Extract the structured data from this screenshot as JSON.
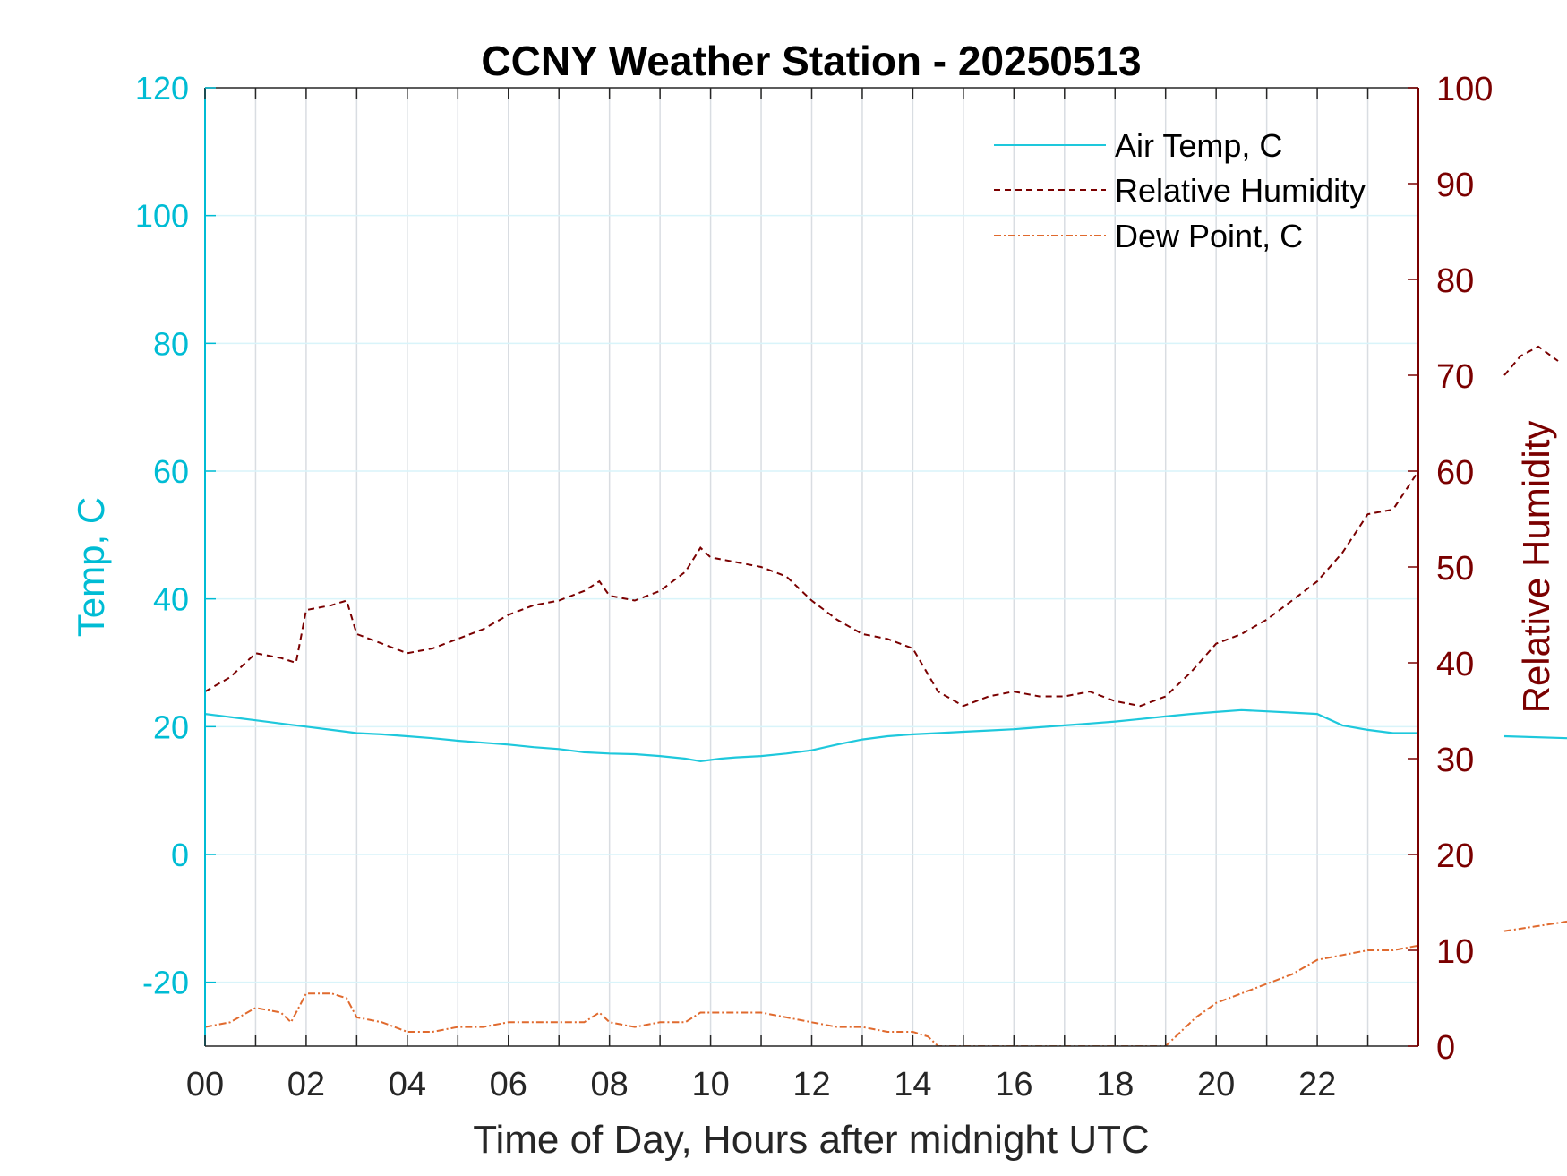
{
  "chart_data": {
    "type": "line",
    "title": "CCNY Weather Station - 20250513",
    "xlabel": "Time of Day, Hours after midnight UTC",
    "ylabel_left": "Temp, C",
    "ylabel_right": "Relative Humidity",
    "xlim": [
      0,
      24
    ],
    "ylim_left": [
      -30,
      120
    ],
    "ylim_right": [
      0,
      100
    ],
    "x_ticks": [
      0,
      1,
      2,
      3,
      4,
      5,
      6,
      7,
      8,
      9,
      10,
      11,
      12,
      13,
      14,
      15,
      16,
      17,
      18,
      19,
      20,
      21,
      22,
      23
    ],
    "x_tick_labels": [
      "00",
      "02",
      "04",
      "06",
      "08",
      "10",
      "12",
      "14",
      "16",
      "18",
      "20",
      "22"
    ],
    "x_tick_label_values": [
      0,
      2,
      4,
      6,
      8,
      10,
      12,
      14,
      16,
      18,
      20,
      22
    ],
    "y_left_ticks": [
      -20,
      0,
      20,
      40,
      60,
      80,
      100,
      120
    ],
    "y_left_tick_labels": [
      "-20",
      "0",
      "20",
      "40",
      "60",
      "80",
      "100",
      "120"
    ],
    "y_right_ticks": [
      0,
      10,
      20,
      30,
      40,
      50,
      60,
      70,
      80,
      90,
      100
    ],
    "y_right_tick_labels": [
      "0",
      "10",
      "20",
      "30",
      "40",
      "50",
      "60",
      "70",
      "80",
      "90",
      "100"
    ],
    "grid": true,
    "legend_position": "top-right",
    "colors": {
      "air_temp": "#1ec8dc",
      "humidity": "#7a0000",
      "dew_point": "#e06a2e",
      "left_axis": "#00bcd4",
      "right_axis": "#7a0000",
      "grid_vertical": "#d9dde2",
      "grid_horizontal": "#d9f4fa"
    },
    "series": [
      {
        "name": "Air Temp, C",
        "axis": "left",
        "style": "solid",
        "x": [
          0,
          0.5,
          1,
          1.5,
          2,
          2.5,
          3,
          3.5,
          4,
          4.5,
          5,
          5.5,
          6,
          6.5,
          7,
          7.5,
          8,
          8.5,
          9,
          9.5,
          9.8,
          10.2,
          10.5,
          11,
          11.5,
          12,
          12.5,
          13,
          13.5,
          14,
          14.5,
          15,
          15.5,
          16,
          16.5,
          17,
          17.5,
          18,
          18.5,
          19,
          19.5,
          20,
          20.5,
          21,
          21.5,
          22,
          22.5,
          23,
          23.5,
          24
        ],
        "values": [
          22,
          21.5,
          21,
          20.5,
          20,
          19.5,
          19,
          18.8,
          18.5,
          18.2,
          17.8,
          17.5,
          17.2,
          16.8,
          16.5,
          16.0,
          15.8,
          15.7,
          15.4,
          15.0,
          14.6,
          15.0,
          15.2,
          15.4,
          15.8,
          16.3,
          17.2,
          18.0,
          18.5,
          18.8,
          19.0,
          19.2,
          19.4,
          19.6,
          19.9,
          20.2,
          20.5,
          20.8,
          21.2,
          21.6,
          22.0,
          22.3,
          22.6,
          22.4,
          22.2,
          22.0,
          20.2,
          19.5,
          19.0,
          19.0
        ]
      },
      {
        "name": "Relative Humidity",
        "axis": "right",
        "style": "dashed",
        "x": [
          0,
          0.5,
          1,
          1.5,
          1.8,
          2,
          2.5,
          2.8,
          3,
          3.5,
          4,
          4.5,
          5,
          5.5,
          6,
          6.5,
          7,
          7.5,
          7.8,
          8,
          8.5,
          9,
          9.5,
          9.8,
          10,
          10.5,
          11,
          11.5,
          12,
          12.5,
          13,
          13.5,
          14,
          14.5,
          15,
          15.5,
          16,
          16.5,
          17,
          17.5,
          18,
          18.5,
          19,
          19.5,
          20,
          20.5,
          21,
          21.5,
          22,
          22.5,
          23,
          23.5,
          24
        ],
        "values": [
          37,
          38.5,
          41,
          40.5,
          40,
          45.5,
          46,
          46.5,
          43,
          42,
          41,
          41.5,
          42.5,
          43.5,
          45,
          46,
          46.5,
          47.5,
          48.5,
          47,
          46.5,
          47.5,
          49.5,
          52,
          51,
          50.5,
          50,
          49,
          46.5,
          44.5,
          43,
          42.5,
          41.5,
          37,
          35.5,
          36.5,
          37,
          36.5,
          36.5,
          37,
          36,
          35.5,
          36.5,
          39,
          42,
          43,
          44.5,
          46.5,
          48.5,
          51.5,
          55.5,
          56,
          60
        ]
      },
      {
        "name": "Dew Point, C",
        "axis": "right",
        "style": "dash-dot",
        "x": [
          0,
          0.5,
          1,
          1.5,
          1.7,
          2,
          2.5,
          2.8,
          3,
          3.5,
          4,
          4.5,
          5,
          5.5,
          6,
          6.5,
          7,
          7.5,
          7.8,
          8,
          8.5,
          9,
          9.5,
          9.8,
          10,
          10.5,
          11,
          11.5,
          12,
          12.5,
          13,
          13.5,
          14,
          14.3,
          14.5,
          19,
          19.3,
          19.6,
          20,
          20.5,
          21,
          21.5,
          22,
          22.5,
          23,
          23.5,
          24
        ],
        "values": [
          2,
          2.5,
          4,
          3.5,
          2.5,
          5.5,
          5.5,
          5,
          3,
          2.5,
          1.5,
          1.5,
          2,
          2,
          2.5,
          2.5,
          2.5,
          2.5,
          3.5,
          2.5,
          2,
          2.5,
          2.5,
          3.5,
          3.5,
          3.5,
          3.5,
          3,
          2.5,
          2,
          2,
          1.5,
          1.5,
          1,
          0,
          0,
          1.5,
          3,
          4.5,
          5.5,
          6.5,
          7.5,
          9,
          9.5,
          10,
          10,
          10.5
        ]
      }
    ],
    "outside_plot_fragments": {
      "humidity_values": [
        70,
        72,
        73,
        71.5
      ],
      "air_temp_value": 18.5,
      "dew_point_values": [
        12,
        12.5,
        13
      ]
    }
  }
}
